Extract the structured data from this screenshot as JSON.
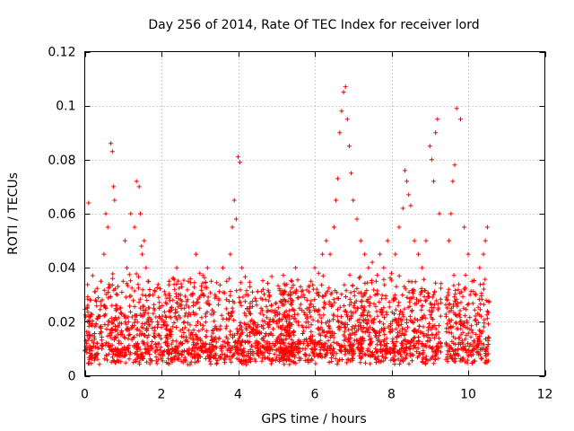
{
  "chart_data": {
    "type": "scatter",
    "title": "Day 256 of 2014, Rate Of TEC Index for receiver lord",
    "xlabel": "GPS time / hours",
    "ylabel": "ROTI / TECUs",
    "xlim": [
      0,
      12
    ],
    "ylim": [
      0,
      0.12
    ],
    "xticks": [
      0,
      2,
      4,
      6,
      8,
      10,
      12
    ],
    "yticks": [
      0,
      0.02,
      0.04,
      0.06,
      0.08,
      0.1,
      0.12
    ],
    "xtick_labels": [
      "0",
      "2",
      "4",
      "6",
      "8",
      "10",
      "12"
    ],
    "ytick_labels": [
      "0",
      "0.02",
      "0.04",
      "0.06",
      "0.08",
      "0.1",
      "0.12"
    ],
    "grid": true,
    "marker": "+",
    "color": "#ff0000",
    "observation_windows": [
      [
        0.0,
        5.5
      ],
      [
        5.1,
        9.3
      ],
      [
        9.4,
        10.55
      ]
    ],
    "series": [
      {
        "name": "ROTI",
        "x": [
          0.05,
          0.12,
          0.2,
          0.28,
          0.35,
          0.42,
          0.5,
          0.55,
          0.6,
          0.68,
          0.72,
          0.75,
          0.78,
          0.85,
          0.92,
          1.0,
          1.05,
          1.1,
          1.2,
          1.3,
          1.35,
          1.42,
          1.45,
          1.48,
          1.5,
          1.55,
          1.6,
          1.65,
          1.7,
          1.8,
          1.9,
          2.0,
          2.1,
          2.2,
          2.3,
          2.4,
          2.5,
          2.6,
          2.7,
          2.8,
          2.9,
          3.0,
          3.1,
          3.2,
          3.3,
          3.4,
          3.5,
          3.6,
          3.7,
          3.8,
          3.85,
          3.9,
          3.95,
          4.0,
          4.05,
          4.1,
          4.2,
          4.3,
          4.4,
          4.5,
          4.6,
          4.7,
          4.8,
          4.9,
          5.0,
          5.1,
          5.2,
          5.3,
          5.4,
          5.5,
          5.6,
          5.7,
          5.8,
          5.9,
          6.0,
          6.1,
          6.2,
          6.3,
          6.4,
          6.5,
          6.55,
          6.6,
          6.65,
          6.7,
          6.75,
          6.8,
          6.85,
          6.9,
          6.95,
          7.0,
          7.1,
          7.2,
          7.3,
          7.4,
          7.5,
          7.6,
          7.7,
          7.8,
          7.9,
          8.0,
          8.1,
          8.2,
          8.3,
          8.35,
          8.4,
          8.45,
          8.5,
          8.6,
          8.7,
          8.8,
          8.9,
          9.0,
          9.05,
          9.1,
          9.15,
          9.2,
          9.25,
          9.5,
          9.55,
          9.6,
          9.65,
          9.7,
          9.8,
          9.9,
          10.0,
          10.1,
          10.2,
          10.3,
          10.4,
          10.45,
          10.5,
          0.1,
          0.3,
          0.45,
          0.62,
          0.8,
          0.95,
          1.15,
          1.25,
          1.38,
          1.58,
          1.75,
          1.95,
          2.15,
          2.35,
          2.55,
          2.75,
          2.95,
          3.15,
          3.35,
          3.55,
          3.75,
          3.98,
          4.15,
          4.35,
          4.55,
          4.75,
          4.95,
          5.15,
          5.35,
          5.55,
          5.75,
          5.95,
          6.15,
          6.35,
          6.45,
          6.62,
          6.78,
          6.92,
          7.05,
          7.25,
          7.45,
          7.65,
          7.85,
          8.05,
          8.25,
          8.42,
          8.55,
          8.75,
          8.95,
          9.12,
          9.22,
          9.52,
          9.62,
          9.75,
          9.95,
          10.15,
          10.35,
          10.48
        ],
        "y": [
          0.012,
          0.02,
          0.015,
          0.028,
          0.022,
          0.035,
          0.045,
          0.06,
          0.055,
          0.086,
          0.083,
          0.07,
          0.065,
          0.03,
          0.025,
          0.035,
          0.05,
          0.04,
          0.06,
          0.055,
          0.072,
          0.07,
          0.06,
          0.048,
          0.045,
          0.05,
          0.04,
          0.035,
          0.03,
          0.025,
          0.02,
          0.018,
          0.03,
          0.035,
          0.028,
          0.04,
          0.03,
          0.025,
          0.035,
          0.03,
          0.045,
          0.038,
          0.03,
          0.04,
          0.035,
          0.03,
          0.028,
          0.04,
          0.035,
          0.045,
          0.055,
          0.065,
          0.058,
          0.081,
          0.079,
          0.04,
          0.03,
          0.025,
          0.02,
          0.018,
          0.025,
          0.02,
          0.018,
          0.015,
          0.02,
          0.018,
          0.022,
          0.03,
          0.035,
          0.04,
          0.025,
          0.03,
          0.028,
          0.035,
          0.04,
          0.038,
          0.045,
          0.05,
          0.045,
          0.055,
          0.065,
          0.073,
          0.09,
          0.098,
          0.105,
          0.107,
          0.095,
          0.085,
          0.075,
          0.065,
          0.058,
          0.05,
          0.045,
          0.04,
          0.042,
          0.035,
          0.045,
          0.04,
          0.05,
          0.038,
          0.045,
          0.055,
          0.062,
          0.076,
          0.072,
          0.067,
          0.063,
          0.05,
          0.045,
          0.04,
          0.05,
          0.085,
          0.08,
          0.072,
          0.09,
          0.095,
          0.06,
          0.05,
          0.06,
          0.072,
          0.078,
          0.099,
          0.095,
          0.055,
          0.045,
          0.035,
          0.03,
          0.04,
          0.045,
          0.05,
          0.055,
          0.064,
          0.008,
          0.01,
          0.012,
          0.014,
          0.012,
          0.015,
          0.018,
          0.012,
          0.01,
          0.02,
          0.015,
          0.012,
          0.01,
          0.012,
          0.014,
          0.01,
          0.012,
          0.013,
          0.011,
          0.01,
          0.012,
          0.01,
          0.011,
          0.012,
          0.01,
          0.008,
          0.01,
          0.009,
          0.01,
          0.01,
          0.012,
          0.015,
          0.013,
          0.015,
          0.02,
          0.018,
          0.015,
          0.016,
          0.014,
          0.012,
          0.013,
          0.011,
          0.012,
          0.015,
          0.018,
          0.02,
          0.016,
          0.015,
          0.014,
          0.012,
          0.01,
          0.012,
          0.014,
          0.015,
          0.01,
          0.012,
          0.01
        ]
      }
    ]
  }
}
